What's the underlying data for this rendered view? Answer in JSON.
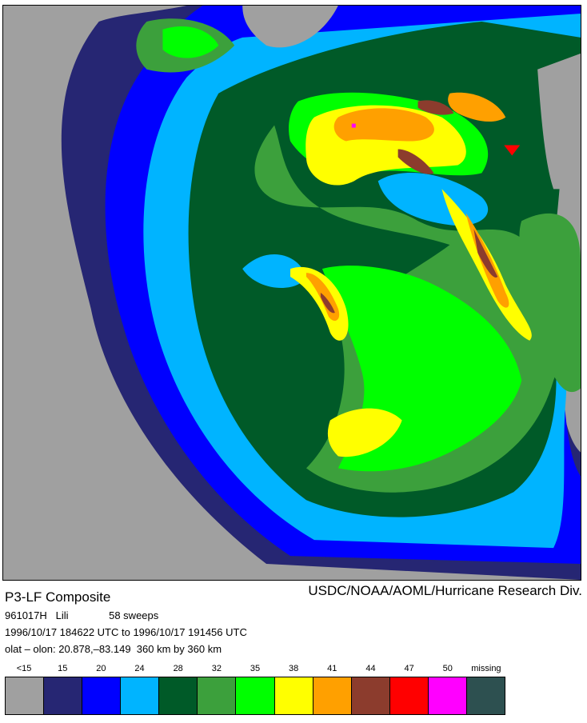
{
  "title": "P3-LF Composite",
  "credit": "USDC/NOAA/AOML/Hurricane Research Div.",
  "meta": {
    "storm_id": "961017H",
    "storm_name": "Lili",
    "sweeps": "58 sweeps",
    "time_range": "1996/10/17 184622 UTC to 1996/10/17 191456 UTC",
    "location": "olat – olon: 20.878,–83.149  360 km by 360 km"
  },
  "legend": {
    "labels": [
      "<15",
      "15",
      "20",
      "24",
      "28",
      "32",
      "35",
      "38",
      "41",
      "44",
      "47",
      "50",
      "missing"
    ],
    "colors": [
      "#a0a0a0",
      "#262673",
      "#0000ff",
      "#00b4ff",
      "#005a28",
      "#3ca03c",
      "#00ff00",
      "#ffff00",
      "#ffa000",
      "#8c3c2d",
      "#ff0000",
      "#ff00ff",
      "#2d5050"
    ]
  },
  "map": {
    "colors": {
      "below15": "#a0a0a0",
      "dbz15": "#262673",
      "dbz20": "#0000ff",
      "dbz24": "#00b4ff",
      "dbz28": "#005a28",
      "dbz32": "#3ca03c",
      "dbz35": "#00ff00",
      "dbz38": "#ffff00",
      "dbz41": "#ffa000",
      "dbz44": "#8c3c2d",
      "dbz47": "#ff0000",
      "dbz50": "#ff00ff",
      "missing": "#2d5050"
    }
  }
}
